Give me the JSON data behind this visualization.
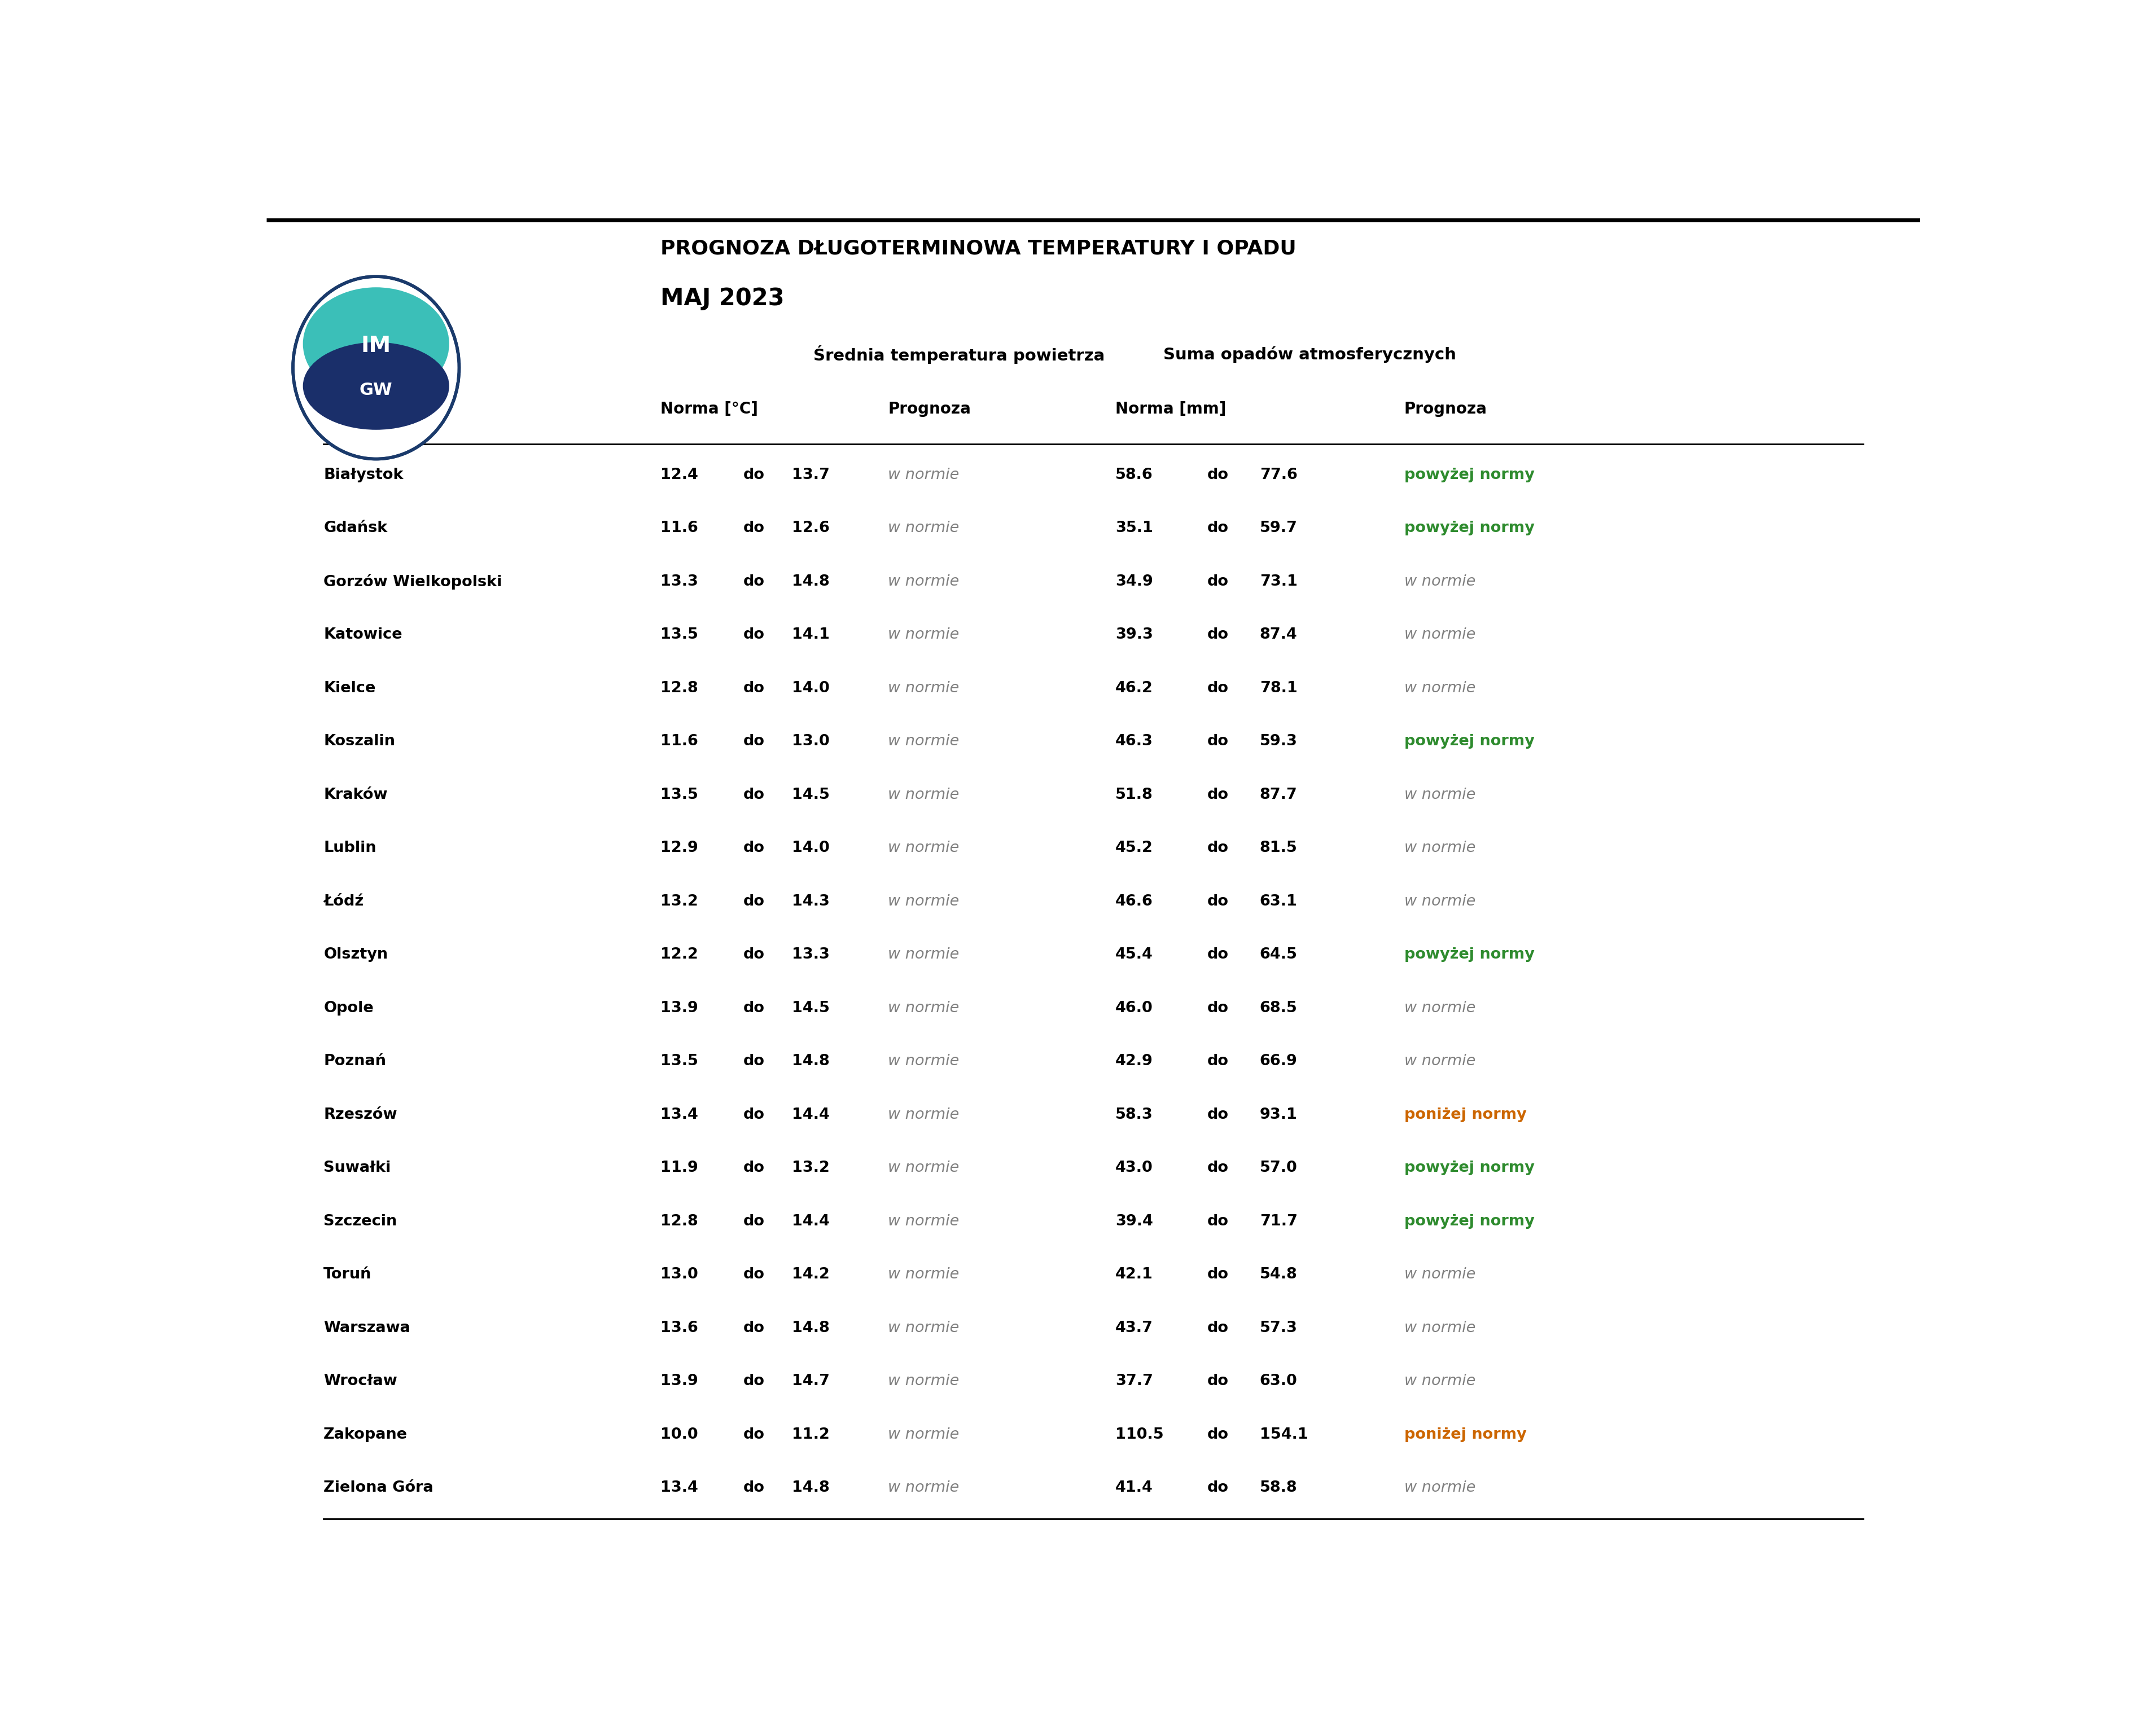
{
  "title_line1": "PROGNOZA DŁUGOTERMINOWA TEMPERATURY I OPADU",
  "title_line2": "MAJ 2023",
  "col_header_temp": "ŚrednIA temperatura powietrza",
  "col_header_rain": "Suma opadów atmosferycznych",
  "subheader_norma_temp": "Norma [°C]",
  "subheader_prognoza": "Prognoza",
  "subheader_norma_rain": "Norma [mm]",
  "cities": [
    "Białystok",
    "Gdańsk",
    "Gorzów Wielkopolski",
    "Katowice",
    "Kielce",
    "Koszalin",
    "Kraków",
    "Lublin",
    "Łódź",
    "Olsztyn",
    "Opole",
    "Poznań",
    "Rzeszów",
    "Suwałki",
    "Szczecin",
    "Toruń",
    "Warszawa",
    "Wrocław",
    "Zakopane",
    "Zielona Góra"
  ],
  "temp_norma_low": [
    12.4,
    11.6,
    13.3,
    13.5,
    12.8,
    11.6,
    13.5,
    12.9,
    13.2,
    12.2,
    13.9,
    13.5,
    13.4,
    11.9,
    12.8,
    13.0,
    13.6,
    13.9,
    10.0,
    13.4
  ],
  "temp_norma_high": [
    13.7,
    12.6,
    14.8,
    14.1,
    14.0,
    13.0,
    14.5,
    14.0,
    14.3,
    13.3,
    14.5,
    14.8,
    14.4,
    13.2,
    14.4,
    14.2,
    14.8,
    14.7,
    11.2,
    14.8
  ],
  "temp_prognoza": [
    "w normie",
    "w normie",
    "w normie",
    "w normie",
    "w normie",
    "w normie",
    "w normie",
    "w normie",
    "w normie",
    "w normie",
    "w normie",
    "w normie",
    "w normie",
    "w normie",
    "w normie",
    "w normie",
    "w normie",
    "w normie",
    "w normie",
    "w normie"
  ],
  "rain_norma_low": [
    58.6,
    35.1,
    34.9,
    39.3,
    46.2,
    46.3,
    51.8,
    45.2,
    46.6,
    45.4,
    46.0,
    42.9,
    58.3,
    43.0,
    39.4,
    42.1,
    43.7,
    37.7,
    110.5,
    41.4
  ],
  "rain_norma_high": [
    77.6,
    59.7,
    73.1,
    87.4,
    78.1,
    59.3,
    87.7,
    81.5,
    63.1,
    64.5,
    68.5,
    66.9,
    93.1,
    57.0,
    71.7,
    54.8,
    57.3,
    63.0,
    154.1,
    58.8
  ],
  "rain_prognoza": [
    "powyżej normy",
    "powyżej normy",
    "w normie",
    "w normie",
    "w normie",
    "powyżej normy",
    "w normie",
    "w normie",
    "w normie",
    "powyżej normy",
    "w normie",
    "w normie",
    "poniżej normy",
    "powyżej normy",
    "powyżej normy",
    "w normie",
    "w normie",
    "w normie",
    "poniżej normy",
    "w normie"
  ],
  "rain_prognoza_colors": [
    "#2E8B2E",
    "#2E8B2E",
    "#808080",
    "#808080",
    "#808080",
    "#2E8B2E",
    "#808080",
    "#808080",
    "#808080",
    "#2E8B2E",
    "#808080",
    "#808080",
    "#CC6600",
    "#2E8B2E",
    "#2E8B2E",
    "#808080",
    "#808080",
    "#808080",
    "#CC6600",
    "#808080"
  ]
}
